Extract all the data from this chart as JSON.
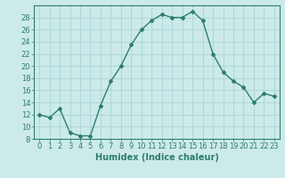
{
  "x": [
    0,
    1,
    2,
    3,
    4,
    5,
    6,
    7,
    8,
    9,
    10,
    11,
    12,
    13,
    14,
    15,
    16,
    17,
    18,
    19,
    20,
    21,
    22,
    23
  ],
  "y": [
    12,
    11.5,
    13,
    9,
    8.5,
    8.5,
    13.5,
    17.5,
    20,
    23.5,
    26,
    27.5,
    28.5,
    28,
    28,
    29,
    27.5,
    22,
    19,
    17.5,
    16.5,
    14,
    15.5,
    15
  ],
  "line_color": "#2e7d6e",
  "marker": "D",
  "marker_size": 2,
  "linewidth": 1.0,
  "background_color": "#cceaea",
  "grid_color": "#b0d8d8",
  "xlabel": "Humidex (Indice chaleur)",
  "xlabel_fontsize": 7,
  "tick_fontsize": 6,
  "ylim": [
    8,
    30
  ],
  "yticks": [
    8,
    10,
    12,
    14,
    16,
    18,
    20,
    22,
    24,
    26,
    28
  ],
  "xlim": [
    -0.5,
    23.5
  ],
  "xticks": [
    0,
    1,
    2,
    3,
    4,
    5,
    6,
    7,
    8,
    9,
    10,
    11,
    12,
    13,
    14,
    15,
    16,
    17,
    18,
    19,
    20,
    21,
    22,
    23
  ]
}
